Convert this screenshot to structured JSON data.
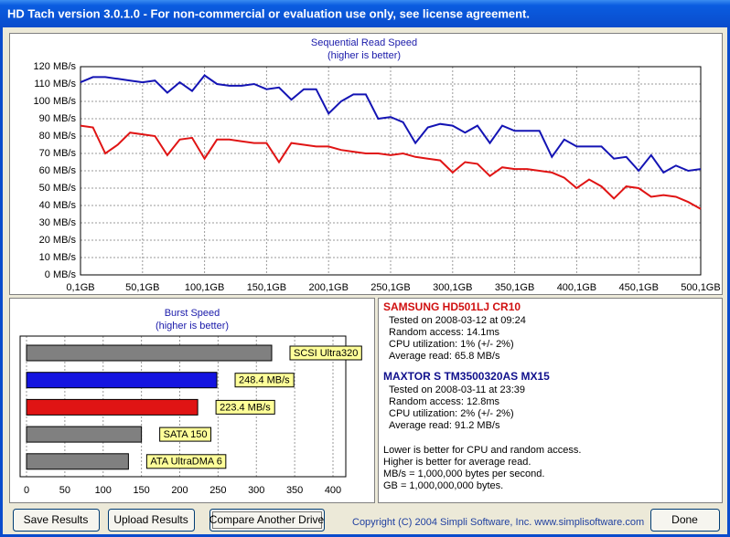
{
  "window": {
    "title": "HD Tach version 3.0.1.0  - For non-commercial or evaluation use only, see license agreement."
  },
  "chart_data": [
    {
      "type": "line",
      "title": "Sequential Read Speed",
      "subtitle": "(higher is better)",
      "x": [
        0.1,
        10.1,
        20.1,
        30.1,
        40.1,
        50.1,
        60.1,
        70.1,
        80.1,
        90.1,
        100.1,
        110.1,
        120.1,
        130.1,
        140.1,
        150.1,
        160.1,
        170.1,
        180.1,
        190.1,
        200.1,
        210.1,
        220.1,
        230.1,
        240.1,
        250.1,
        260.1,
        270.1,
        280.1,
        290.1,
        300.1,
        310.1,
        320.1,
        330.1,
        340.1,
        350.1,
        360.1,
        370.1,
        380.1,
        390.1,
        400.1,
        410.1,
        420.1,
        430.1,
        440.1,
        450.1,
        460.1,
        470.1,
        480.1,
        490.1,
        500.1
      ],
      "series": [
        {
          "color": "#1414b4",
          "values": [
            111,
            114,
            114,
            113,
            112,
            111,
            112,
            105,
            111,
            106,
            115,
            110,
            109,
            109,
            110,
            107,
            108,
            101,
            107,
            107,
            93,
            100,
            104,
            104,
            90,
            91,
            88,
            76,
            85,
            87,
            86,
            82,
            86,
            76,
            86,
            83,
            83,
            83,
            68,
            78,
            74,
            74,
            74,
            67,
            68,
            60,
            69,
            59,
            63,
            60,
            61
          ]
        },
        {
          "color": "#e01414",
          "values": [
            86,
            85,
            70,
            75,
            82,
            81,
            80,
            69,
            78,
            79,
            67,
            78,
            78,
            77,
            76,
            76,
            65,
            76,
            75,
            74,
            74,
            72,
            71,
            70,
            70,
            69,
            70,
            68,
            67,
            66,
            59,
            65,
            64,
            57,
            62,
            61,
            61,
            60,
            59,
            56,
            50,
            55,
            51,
            44,
            51,
            50,
            45,
            46,
            45,
            42,
            38
          ]
        }
      ],
      "xlim": [
        0.1,
        500.1
      ],
      "xticks": [
        {
          "value": 0.1,
          "label": "0,1GB"
        },
        {
          "value": 50.1,
          "label": "50,1GB"
        },
        {
          "value": 100.1,
          "label": "100,1GB"
        },
        {
          "value": 150.1,
          "label": "150,1GB"
        },
        {
          "value": 200.1,
          "label": "200,1GB"
        },
        {
          "value": 250.1,
          "label": "250,1GB"
        },
        {
          "value": 300.1,
          "label": "300,1GB"
        },
        {
          "value": 350.1,
          "label": "350,1GB"
        },
        {
          "value": 400.1,
          "label": "400,1GB"
        },
        {
          "value": 450.1,
          "label": "450,1GB"
        },
        {
          "value": 500.1,
          "label": "500,1GB"
        }
      ],
      "ylim": [
        0,
        120
      ],
      "yticks": [
        {
          "value": 0,
          "label": "0 MB/s"
        },
        {
          "value": 10,
          "label": "10 MB/s"
        },
        {
          "value": 20,
          "label": "20 MB/s"
        },
        {
          "value": 30,
          "label": "30 MB/s"
        },
        {
          "value": 40,
          "label": "40 MB/s"
        },
        {
          "value": 50,
          "label": "50 MB/s"
        },
        {
          "value": 60,
          "label": "60 MB/s"
        },
        {
          "value": 70,
          "label": "70 MB/s"
        },
        {
          "value": 80,
          "label": "80 MB/s"
        },
        {
          "value": 90,
          "label": "90 MB/s"
        },
        {
          "value": 100,
          "label": "100 MB/s"
        },
        {
          "value": 110,
          "label": "110 MB/s"
        },
        {
          "value": 120,
          "label": "120 MB/s"
        }
      ],
      "grid": true
    },
    {
      "type": "bar",
      "orientation": "horizontal",
      "title": "Burst Speed",
      "subtitle": "(higher is better)",
      "categories": [
        "SCSI Ultra320",
        null,
        null,
        "SATA 150",
        "ATA UltraDMA 6"
      ],
      "values": [
        320,
        248.4,
        223.4,
        150,
        133
      ],
      "value_labels": [
        null,
        "248.4 MB/s",
        "223.4 MB/s",
        null,
        null
      ],
      "colors": [
        "#808080",
        "#1414e0",
        "#e01414",
        "#808080",
        "#808080"
      ],
      "xlim": [
        0,
        400
      ],
      "xticks": [
        0,
        50,
        100,
        150,
        200,
        250,
        300,
        350,
        400
      ],
      "grid": true
    }
  ],
  "drives": [
    {
      "name": "SAMSUNG HD501LJ CR10",
      "color": "#d01010",
      "lines": [
        "Tested on 2008-03-12 at 09:24",
        "Random access: 14.1ms",
        "CPU utilization: 1% (+/- 2%)",
        "Average read: 65.8 MB/s"
      ]
    },
    {
      "name": "MAXTOR S TM3500320AS MX15",
      "color": "#10108c",
      "lines": [
        "Tested on 2008-03-11 at 23:39",
        "Random access: 12.8ms",
        "CPU utilization: 2% (+/- 2%)",
        "Average read: 91.2 MB/s"
      ]
    }
  ],
  "notes": [
    "Lower is better for CPU and random access.",
    "Higher is better for average read.",
    "MB/s = 1,000,000 bytes per second.",
    "GB = 1,000,000,000 bytes."
  ],
  "buttons": [
    "Save Results",
    "Upload Results",
    "Compare Another Drive",
    "Done"
  ],
  "copyright": "Copyright (C) 2004 Simpli Software, Inc. www.simplisoftware.com"
}
